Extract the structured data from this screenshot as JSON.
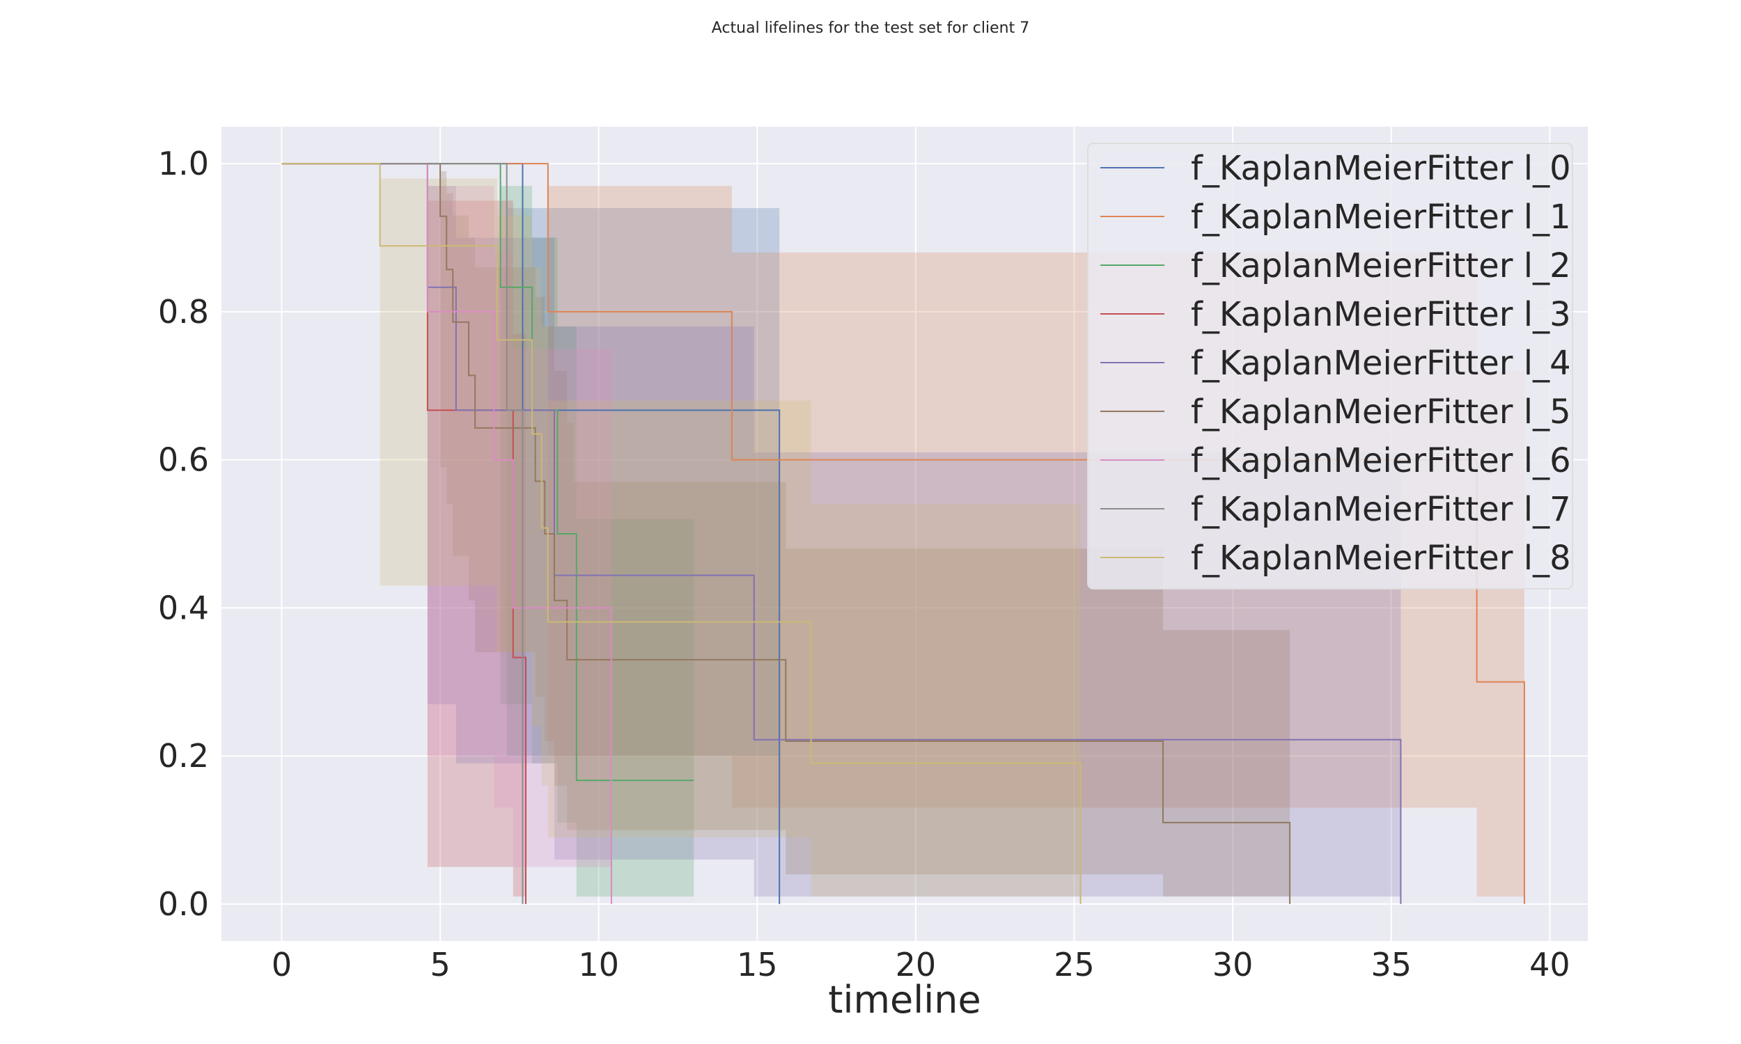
{
  "chart_data": {
    "type": "line",
    "title": "Actual lifelines for the test set for client 7",
    "xlabel": "timeline",
    "ylabel": "",
    "xlim": [
      -1.9,
      41.2
    ],
    "ylim": [
      -0.05,
      1.05
    ],
    "xticks": [
      0,
      5,
      10,
      15,
      20,
      25,
      30,
      35,
      40
    ],
    "yticks": [
      0.0,
      0.2,
      0.4,
      0.6,
      0.8,
      1.0
    ],
    "xtick_labels": [
      "0",
      "5",
      "10",
      "15",
      "20",
      "25",
      "30",
      "35",
      "40"
    ],
    "ytick_labels": [
      "0.0",
      "0.2",
      "0.4",
      "0.6",
      "0.8",
      "1.0"
    ],
    "grid": true,
    "legend_position": "top-right",
    "series": [
      {
        "name": "f_KaplanMeierFitter l_0",
        "color": "#4c72b0",
        "x": [
          0,
          7.6,
          15.7
        ],
        "y": [
          1.0,
          0.667,
          0.0
        ],
        "ci_lower": [
          1.0,
          0.2,
          0.0
        ],
        "ci_upper": [
          1.0,
          0.94,
          0.0
        ]
      },
      {
        "name": "f_KaplanMeierFitter l_1",
        "color": "#dd8452",
        "x": [
          0,
          8.4,
          14.2,
          37.7,
          39.2
        ],
        "y": [
          1.0,
          0.8,
          0.6,
          0.3,
          0.0
        ],
        "ci_lower": [
          1.0,
          0.2,
          0.13,
          0.01,
          0.0
        ],
        "ci_upper": [
          1.0,
          0.97,
          0.88,
          0.72,
          0.0
        ]
      },
      {
        "name": "f_KaplanMeierFitter l_2",
        "color": "#55a868",
        "x": [
          0,
          6.9,
          7.9,
          8.7,
          9.3,
          13.0
        ],
        "y": [
          1.0,
          0.833,
          0.667,
          0.5,
          0.167,
          0.167
        ],
        "ci_lower": [
          1.0,
          0.27,
          0.19,
          0.11,
          0.01,
          0.01
        ],
        "ci_upper": [
          1.0,
          0.97,
          0.9,
          0.78,
          0.52,
          0.52
        ]
      },
      {
        "name": "f_KaplanMeierFitter l_3",
        "color": "#c44e52",
        "x": [
          0,
          4.6,
          7.3,
          7.7
        ],
        "y": [
          1.0,
          0.667,
          0.333,
          0.0
        ],
        "ci_lower": [
          1.0,
          0.05,
          0.01,
          0.0
        ],
        "ci_upper": [
          1.0,
          0.95,
          0.77,
          0.0
        ]
      },
      {
        "name": "f_KaplanMeierFitter l_4",
        "color": "#8172b3",
        "x": [
          0,
          4.6,
          5.5,
          8.6,
          14.9,
          35.3
        ],
        "y": [
          1.0,
          0.833,
          0.667,
          0.444,
          0.222,
          0.0
        ],
        "ci_lower": [
          1.0,
          0.27,
          0.19,
          0.06,
          0.01,
          0.0
        ],
        "ci_upper": [
          1.0,
          0.97,
          0.9,
          0.78,
          0.61,
          0.0
        ]
      },
      {
        "name": "f_KaplanMeierFitter l_5",
        "color": "#937860",
        "x": [
          0,
          5.0,
          5.2,
          5.4,
          5.9,
          6.1,
          6.4,
          8.0,
          8.3,
          8.6,
          9.0,
          9.2,
          15.9,
          27.8,
          31.8
        ],
        "y": [
          1.0,
          0.929,
          0.857,
          0.786,
          0.714,
          0.643,
          0.643,
          0.571,
          0.5,
          0.41,
          0.33,
          0.33,
          0.22,
          0.11,
          0.0
        ],
        "ci_lower": [
          1.0,
          0.59,
          0.54,
          0.47,
          0.41,
          0.34,
          0.34,
          0.28,
          0.22,
          0.16,
          0.1,
          0.1,
          0.04,
          0.01,
          0.0
        ],
        "ci_upper": [
          1.0,
          0.99,
          0.96,
          0.93,
          0.9,
          0.86,
          0.86,
          0.82,
          0.78,
          0.72,
          0.65,
          0.57,
          0.48,
          0.37,
          0.0
        ]
      },
      {
        "name": "f_KaplanMeierFitter l_6",
        "color": "#da8bc3",
        "x": [
          0,
          4.6,
          6.7,
          7.3,
          7.6,
          9.3,
          10.4
        ],
        "y": [
          1.0,
          0.8,
          0.6,
          0.4,
          0.4,
          0.4,
          0.0
        ],
        "ci_lower": [
          1.0,
          0.2,
          0.13,
          0.05,
          0.05,
          0.05,
          0.0
        ],
        "ci_upper": [
          1.0,
          0.97,
          0.88,
          0.75,
          0.75,
          0.75,
          0.0
        ]
      },
      {
        "name": "f_KaplanMeierFitter l_7",
        "color": "#8c8c8c",
        "x": [
          0,
          7.1,
          7.6
        ],
        "y": [
          1.0,
          0.667,
          0.0
        ],
        "ci_lower": [
          1.0,
          0.2,
          0.0
        ],
        "ci_upper": [
          1.0,
          0.94,
          0.0
        ]
      },
      {
        "name": "f_KaplanMeierFitter l_8",
        "color": "#ccb974",
        "x": [
          0,
          3.1,
          6.8,
          7.9,
          8.2,
          8.4,
          16.7,
          25.2
        ],
        "y": [
          1.0,
          0.889,
          0.762,
          0.635,
          0.508,
          0.381,
          0.19,
          0.0
        ],
        "ci_lower": [
          1.0,
          0.43,
          0.34,
          0.24,
          0.16,
          0.09,
          0.01,
          0.0
        ],
        "ci_upper": [
          1.0,
          0.98,
          0.93,
          0.86,
          0.78,
          0.68,
          0.54,
          0.0
        ]
      }
    ]
  }
}
